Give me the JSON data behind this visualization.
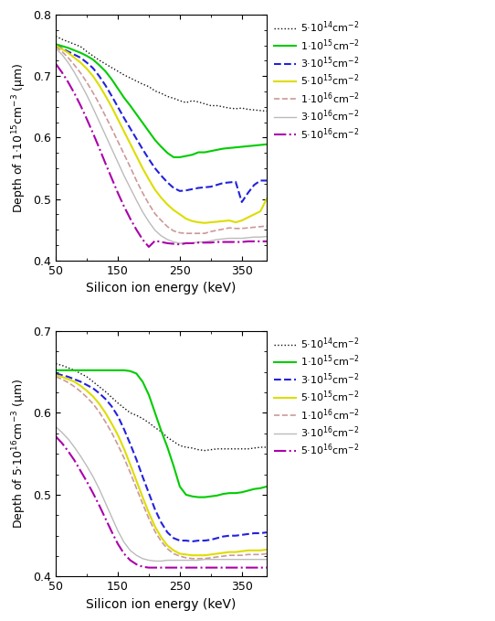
{
  "x": [
    50,
    60,
    70,
    80,
    90,
    100,
    110,
    120,
    130,
    140,
    150,
    160,
    170,
    180,
    190,
    200,
    210,
    220,
    230,
    240,
    250,
    260,
    270,
    280,
    290,
    300,
    310,
    320,
    330,
    340,
    350,
    360,
    370,
    380,
    390
  ],
  "plot1_ylabel": "Depth of 1·10$^{15}$cm$^{-3}$ (μm)",
  "plot2_ylabel": "Depth of 5·10$^{16}$cm$^{-3}$ (μm)",
  "xlabel": "Silicon ion energy (keV)",
  "plot1_ylim": [
    0.4,
    0.8
  ],
  "plot2_ylim": [
    0.4,
    0.7
  ],
  "legend_labels": [
    "5·10$^{14}$cm$^{-2}$",
    "1·10$^{15}$cm$^{-2}$",
    "3·10$^{15}$cm$^{-2}$",
    "5·10$^{15}$cm$^{-2}$",
    "1·10$^{16}$cm$^{-2}$",
    "3·10$^{16}$cm$^{-2}$",
    "5·10$^{16}$cm$^{-2}$"
  ],
  "line_colors": [
    "#111111",
    "#00cc00",
    "#2222dd",
    "#dddd00",
    "#cc9999",
    "#bbbbbb",
    "#aa00aa"
  ],
  "line_styles": [
    "-.",
    "-",
    "--",
    "-",
    "--",
    "-",
    "-."
  ],
  "line_widths": [
    1.0,
    1.5,
    1.5,
    1.5,
    1.2,
    1.0,
    1.5
  ],
  "line_dashes_extra": [
    null,
    null,
    null,
    null,
    null,
    null,
    null
  ],
  "plot1_data": [
    [
      0.765,
      0.76,
      0.756,
      0.752,
      0.748,
      0.74,
      0.733,
      0.726,
      0.72,
      0.714,
      0.708,
      0.702,
      0.697,
      0.692,
      0.687,
      0.683,
      0.676,
      0.672,
      0.667,
      0.664,
      0.66,
      0.657,
      0.66,
      0.658,
      0.655,
      0.652,
      0.652,
      0.65,
      0.648,
      0.647,
      0.648,
      0.646,
      0.645,
      0.644,
      0.643
    ],
    [
      0.752,
      0.749,
      0.746,
      0.742,
      0.738,
      0.733,
      0.727,
      0.718,
      0.708,
      0.695,
      0.68,
      0.665,
      0.652,
      0.638,
      0.624,
      0.61,
      0.596,
      0.585,
      0.575,
      0.568,
      0.568,
      0.57,
      0.572,
      0.576,
      0.576,
      0.578,
      0.58,
      0.582,
      0.583,
      0.584,
      0.585,
      0.586,
      0.587,
      0.588,
      0.589
    ],
    [
      0.75,
      0.745,
      0.74,
      0.735,
      0.73,
      0.722,
      0.713,
      0.7,
      0.685,
      0.668,
      0.65,
      0.632,
      0.615,
      0.598,
      0.581,
      0.565,
      0.55,
      0.538,
      0.527,
      0.518,
      0.513,
      0.514,
      0.516,
      0.518,
      0.519,
      0.52,
      0.523,
      0.526,
      0.527,
      0.528,
      0.495,
      0.51,
      0.523,
      0.53,
      0.53
    ],
    [
      0.75,
      0.744,
      0.738,
      0.73,
      0.722,
      0.712,
      0.7,
      0.685,
      0.668,
      0.65,
      0.63,
      0.61,
      0.59,
      0.57,
      0.55,
      0.532,
      0.515,
      0.502,
      0.491,
      0.482,
      0.475,
      0.468,
      0.464,
      0.462,
      0.461,
      0.462,
      0.463,
      0.464,
      0.465,
      0.462,
      0.465,
      0.47,
      0.475,
      0.48,
      0.5
    ],
    [
      0.748,
      0.74,
      0.73,
      0.718,
      0.705,
      0.69,
      0.673,
      0.655,
      0.635,
      0.615,
      0.594,
      0.573,
      0.552,
      0.53,
      0.51,
      0.492,
      0.476,
      0.465,
      0.455,
      0.448,
      0.445,
      0.444,
      0.444,
      0.444,
      0.444,
      0.447,
      0.449,
      0.451,
      0.453,
      0.452,
      0.452,
      0.453,
      0.454,
      0.455,
      0.456
    ],
    [
      0.745,
      0.735,
      0.722,
      0.706,
      0.688,
      0.669,
      0.648,
      0.626,
      0.604,
      0.582,
      0.56,
      0.538,
      0.518,
      0.498,
      0.479,
      0.463,
      0.449,
      0.44,
      0.434,
      0.43,
      0.428,
      0.428,
      0.428,
      0.43,
      0.43,
      0.432,
      0.434,
      0.435,
      0.436,
      0.436,
      0.436,
      0.437,
      0.438,
      0.438,
      0.439
    ],
    [
      0.72,
      0.706,
      0.69,
      0.672,
      0.652,
      0.63,
      0.607,
      0.583,
      0.558,
      0.534,
      0.51,
      0.488,
      0.468,
      0.45,
      0.434,
      0.422,
      0.432,
      0.43,
      0.428,
      0.427,
      0.426,
      0.428,
      0.428,
      0.429,
      0.429,
      0.429,
      0.43,
      0.43,
      0.43,
      0.43,
      0.43,
      0.431,
      0.431,
      0.431,
      0.431
    ]
  ],
  "plot2_data": [
    [
      0.66,
      0.658,
      0.655,
      0.652,
      0.648,
      0.644,
      0.638,
      0.632,
      0.626,
      0.619,
      0.612,
      0.606,
      0.6,
      0.597,
      0.593,
      0.588,
      0.582,
      0.577,
      0.57,
      0.565,
      0.56,
      0.558,
      0.557,
      0.555,
      0.554,
      0.555,
      0.556,
      0.556,
      0.556,
      0.556,
      0.556,
      0.556,
      0.557,
      0.558,
      0.558
    ],
    [
      0.652,
      0.652,
      0.652,
      0.652,
      0.652,
      0.652,
      0.652,
      0.652,
      0.652,
      0.652,
      0.652,
      0.652,
      0.651,
      0.648,
      0.638,
      0.622,
      0.6,
      0.578,
      0.558,
      0.535,
      0.51,
      0.5,
      0.498,
      0.497,
      0.497,
      0.498,
      0.499,
      0.501,
      0.502,
      0.502,
      0.503,
      0.505,
      0.507,
      0.508,
      0.51
    ],
    [
      0.648,
      0.646,
      0.644,
      0.641,
      0.638,
      0.634,
      0.63,
      0.624,
      0.617,
      0.608,
      0.596,
      0.58,
      0.562,
      0.543,
      0.522,
      0.502,
      0.482,
      0.466,
      0.454,
      0.447,
      0.444,
      0.444,
      0.443,
      0.444,
      0.444,
      0.445,
      0.447,
      0.449,
      0.45,
      0.45,
      0.451,
      0.452,
      0.453,
      0.453,
      0.454
    ],
    [
      0.646,
      0.644,
      0.641,
      0.638,
      0.633,
      0.627,
      0.62,
      0.611,
      0.6,
      0.587,
      0.573,
      0.556,
      0.537,
      0.517,
      0.497,
      0.478,
      0.461,
      0.448,
      0.438,
      0.432,
      0.428,
      0.427,
      0.426,
      0.426,
      0.426,
      0.427,
      0.428,
      0.429,
      0.43,
      0.43,
      0.431,
      0.432,
      0.432,
      0.432,
      0.433
    ],
    [
      0.644,
      0.641,
      0.637,
      0.632,
      0.626,
      0.619,
      0.611,
      0.601,
      0.589,
      0.576,
      0.561,
      0.545,
      0.527,
      0.508,
      0.489,
      0.471,
      0.455,
      0.443,
      0.434,
      0.428,
      0.425,
      0.423,
      0.422,
      0.422,
      0.422,
      0.423,
      0.424,
      0.425,
      0.426,
      0.426,
      0.426,
      0.427,
      0.427,
      0.427,
      0.428
    ],
    [
      0.583,
      0.576,
      0.568,
      0.558,
      0.547,
      0.535,
      0.522,
      0.507,
      0.49,
      0.473,
      0.456,
      0.442,
      0.432,
      0.426,
      0.422,
      0.42,
      0.419,
      0.419,
      0.42,
      0.42,
      0.42,
      0.42,
      0.42,
      0.42,
      0.421,
      0.421,
      0.421,
      0.421,
      0.421,
      0.421,
      0.421,
      0.421,
      0.421,
      0.421,
      0.421
    ],
    [
      0.571,
      0.563,
      0.553,
      0.542,
      0.529,
      0.516,
      0.502,
      0.487,
      0.471,
      0.455,
      0.44,
      0.428,
      0.42,
      0.415,
      0.412,
      0.411,
      0.411,
      0.411,
      0.411,
      0.411,
      0.411,
      0.411,
      0.411,
      0.411,
      0.411,
      0.411,
      0.411,
      0.411,
      0.411,
      0.411,
      0.411,
      0.411,
      0.411,
      0.411,
      0.411
    ]
  ]
}
